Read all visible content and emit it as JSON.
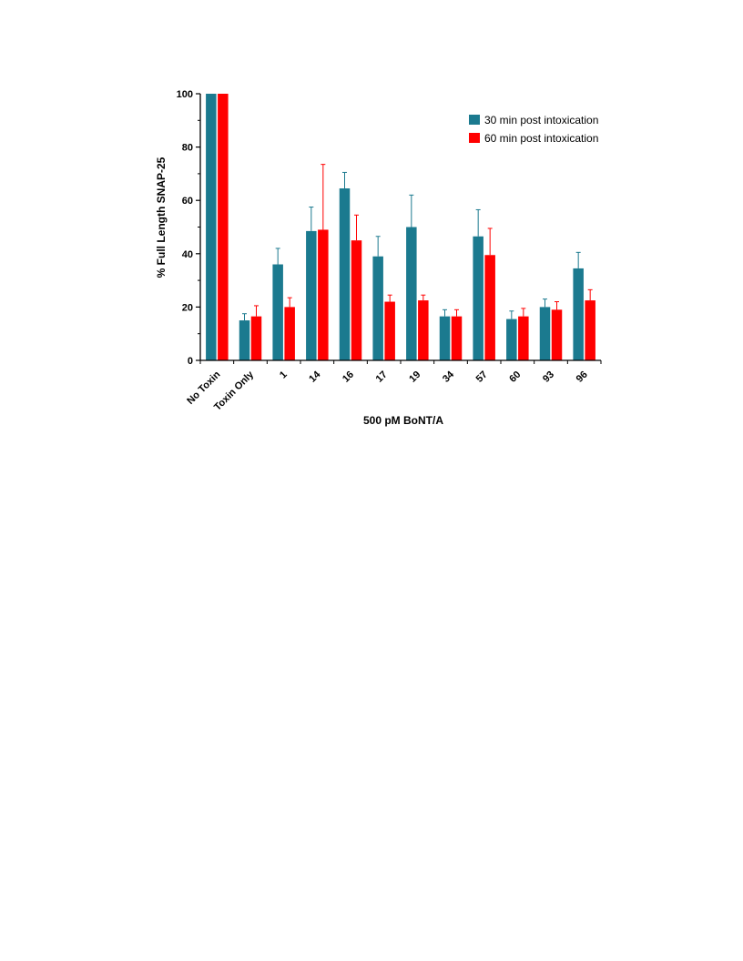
{
  "chart_data": {
    "type": "bar",
    "title": "",
    "xlabel": "500 pM BoNT/A",
    "ylabel": "% Full Length SNAP-25",
    "ylim": [
      0,
      100
    ],
    "yticks": [
      0,
      20,
      40,
      60,
      80,
      100
    ],
    "grid": false,
    "legend_position": "top-right",
    "categories": [
      "No Toxin",
      "Toxin Only",
      "1",
      "14",
      "16",
      "17",
      "19",
      "34",
      "57",
      "60",
      "93",
      "96"
    ],
    "series": [
      {
        "name": "30 min post intoxication",
        "color": "#1b7a8f",
        "values": [
          100,
          15,
          36,
          48.5,
          64.5,
          39,
          50,
          16.5,
          46.5,
          15.5,
          20,
          34.5
        ],
        "errors": [
          0,
          2.5,
          6,
          9,
          6,
          7.5,
          12,
          2.5,
          10,
          3,
          3,
          6
        ]
      },
      {
        "name": "60 min post intoxication",
        "color": "#ff0000",
        "values": [
          100,
          16.5,
          20,
          49,
          45,
          22,
          22.5,
          16.5,
          39.5,
          16.5,
          19,
          22.5
        ],
        "errors": [
          0,
          4,
          3.5,
          24.5,
          9.5,
          2.5,
          2,
          2.5,
          10,
          3,
          3,
          4
        ]
      }
    ]
  }
}
